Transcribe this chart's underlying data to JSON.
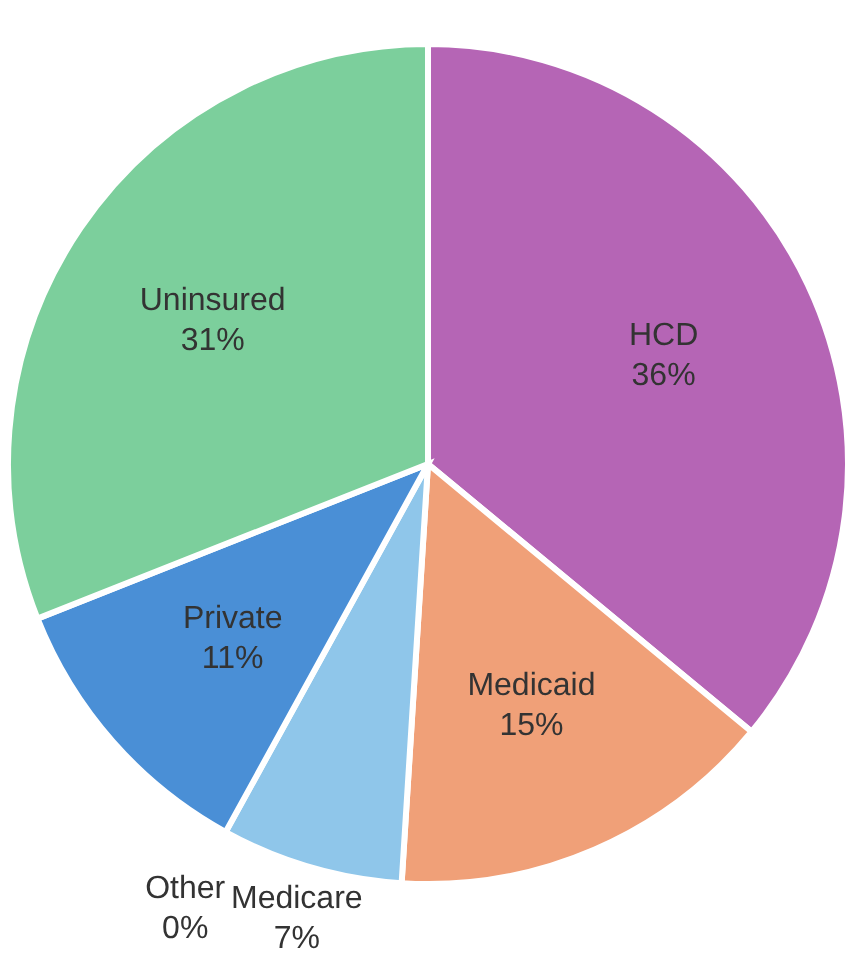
{
  "chart_data": {
    "type": "pie",
    "categories": [
      "HCD",
      "Medicaid",
      "Medicare",
      "Other",
      "Private",
      "Uninsured"
    ],
    "values": [
      36,
      15,
      7,
      0,
      11,
      31
    ],
    "colors": [
      "#b565b5",
      "#f0a078",
      "#8fc6ea",
      null,
      "#4a8fd6",
      "#7ccf9c"
    ],
    "value_labels": [
      "36%",
      "15%",
      "7%",
      "0%",
      "11%",
      "31%"
    ]
  }
}
